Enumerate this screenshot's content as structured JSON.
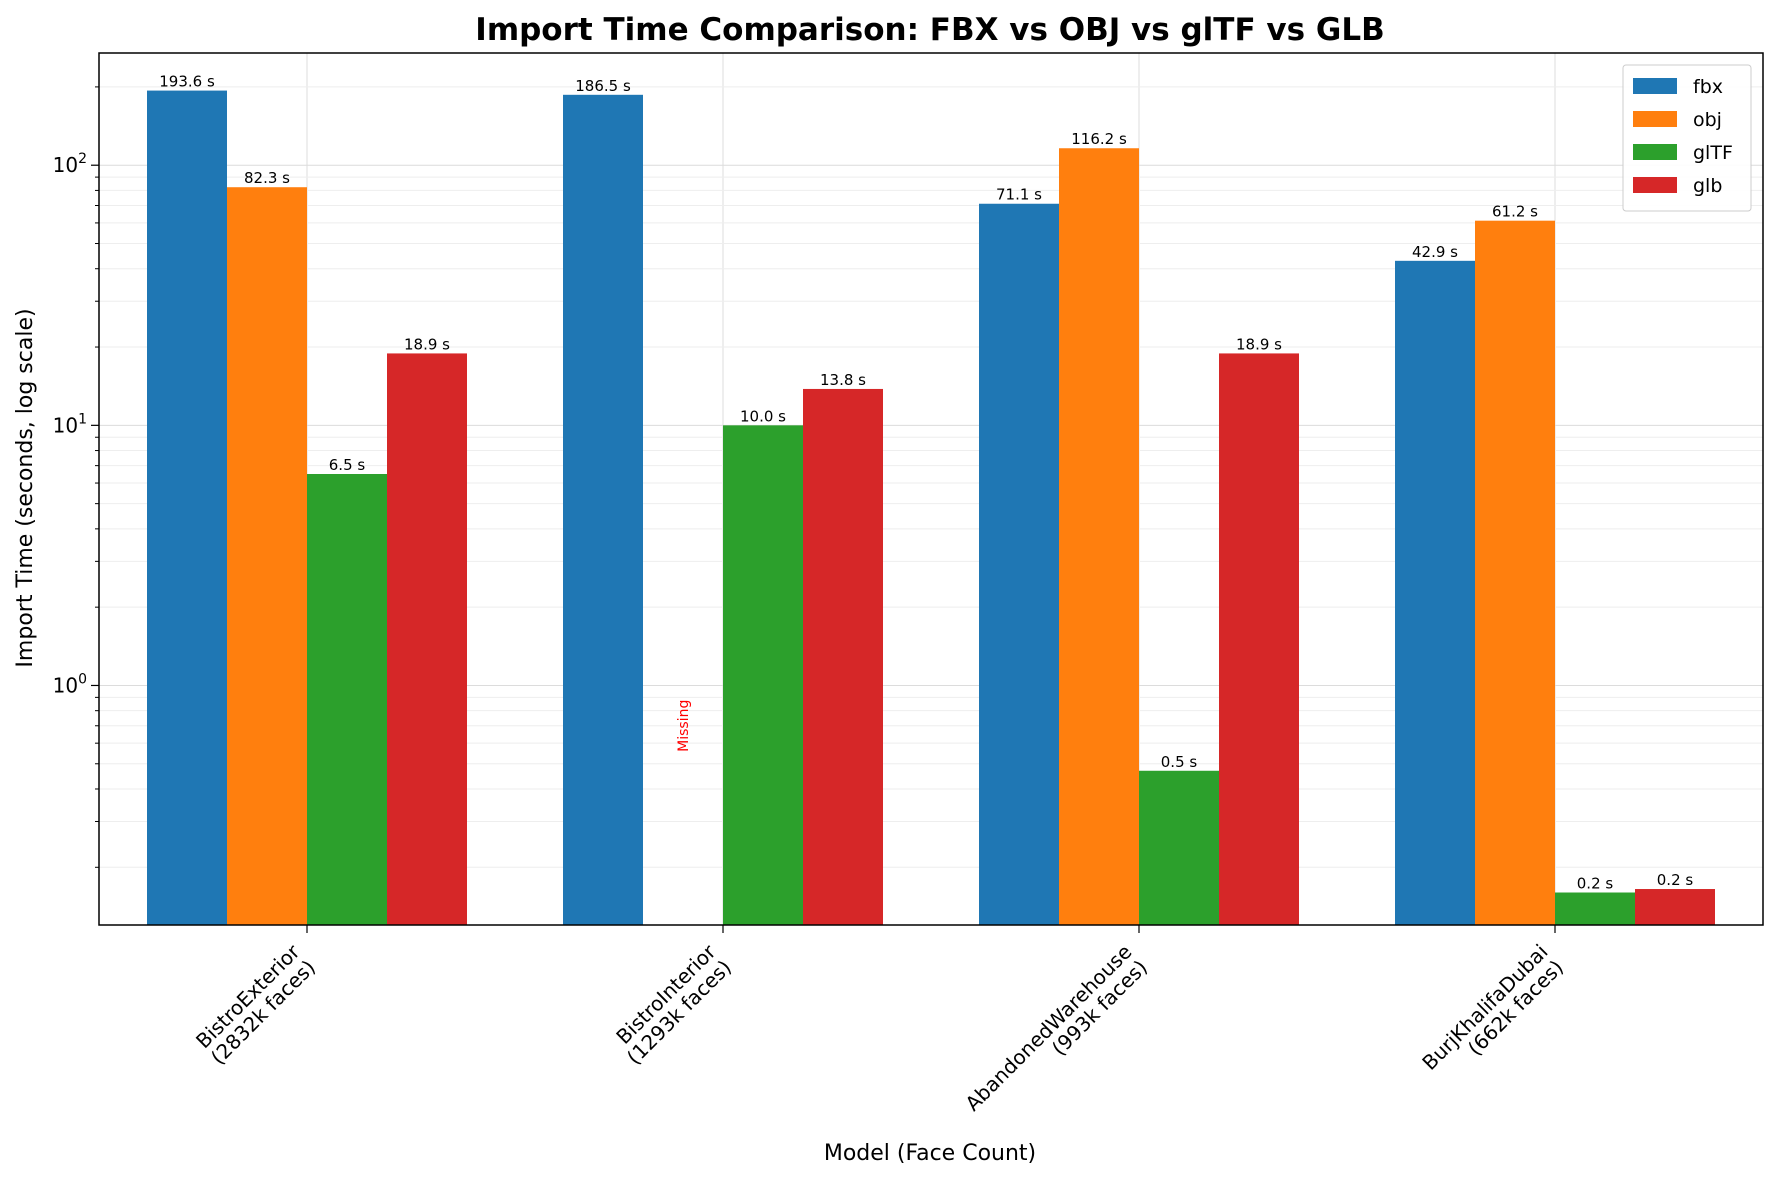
{
  "chart_data": {
    "type": "bar",
    "title": "Import Time Comparison: FBX vs OBJ vs glTF vs GLB",
    "xlabel": "Model (Face Count)",
    "ylabel": "Import Time (seconds, log scale)",
    "yscale": "log",
    "ylim": [
      0.12,
      270
    ],
    "yticks": [
      {
        "value": 1,
        "base": "10",
        "exp": "0"
      },
      {
        "value": 10,
        "base": "10",
        "exp": "1"
      },
      {
        "value": 100,
        "base": "10",
        "exp": "2"
      }
    ],
    "grid": true,
    "legend_position": "top-right",
    "categories": [
      [
        "BistroExterior",
        "(2832k faces)"
      ],
      [
        "BistroInterior",
        "(1293k faces)"
      ],
      [
        "AbandonedWarehouse",
        "(993k faces)"
      ],
      [
        "BurjKhalifaDubai",
        "(662k faces)"
      ]
    ],
    "series": [
      {
        "name": "fbx",
        "color": "#1f77b4",
        "values": [
          193.6,
          186.5,
          71.1,
          42.9
        ],
        "labels": [
          "193.6 s",
          "186.5 s",
          "71.1 s",
          "42.9 s"
        ]
      },
      {
        "name": "obj",
        "color": "#ff7f0e",
        "values": [
          82.3,
          null,
          116.2,
          61.2
        ],
        "labels": [
          "82.3 s",
          "",
          "116.2 s",
          "61.2 s"
        ]
      },
      {
        "name": "glTF",
        "color": "#2ca02c",
        "values": [
          6.5,
          10.0,
          0.47,
          0.16
        ],
        "labels": [
          "6.5 s",
          "10.0 s",
          "0.5 s",
          "0.2 s"
        ]
      },
      {
        "name": "glb",
        "color": "#d62728",
        "values": [
          18.9,
          13.8,
          18.9,
          0.165
        ],
        "labels": [
          "18.9 s",
          "13.8 s",
          "18.9 s",
          "0.2 s"
        ]
      }
    ],
    "annotations": [
      {
        "text": "Missing",
        "category_index": 1,
        "series_index": 1,
        "color": "#ff0000"
      }
    ]
  }
}
